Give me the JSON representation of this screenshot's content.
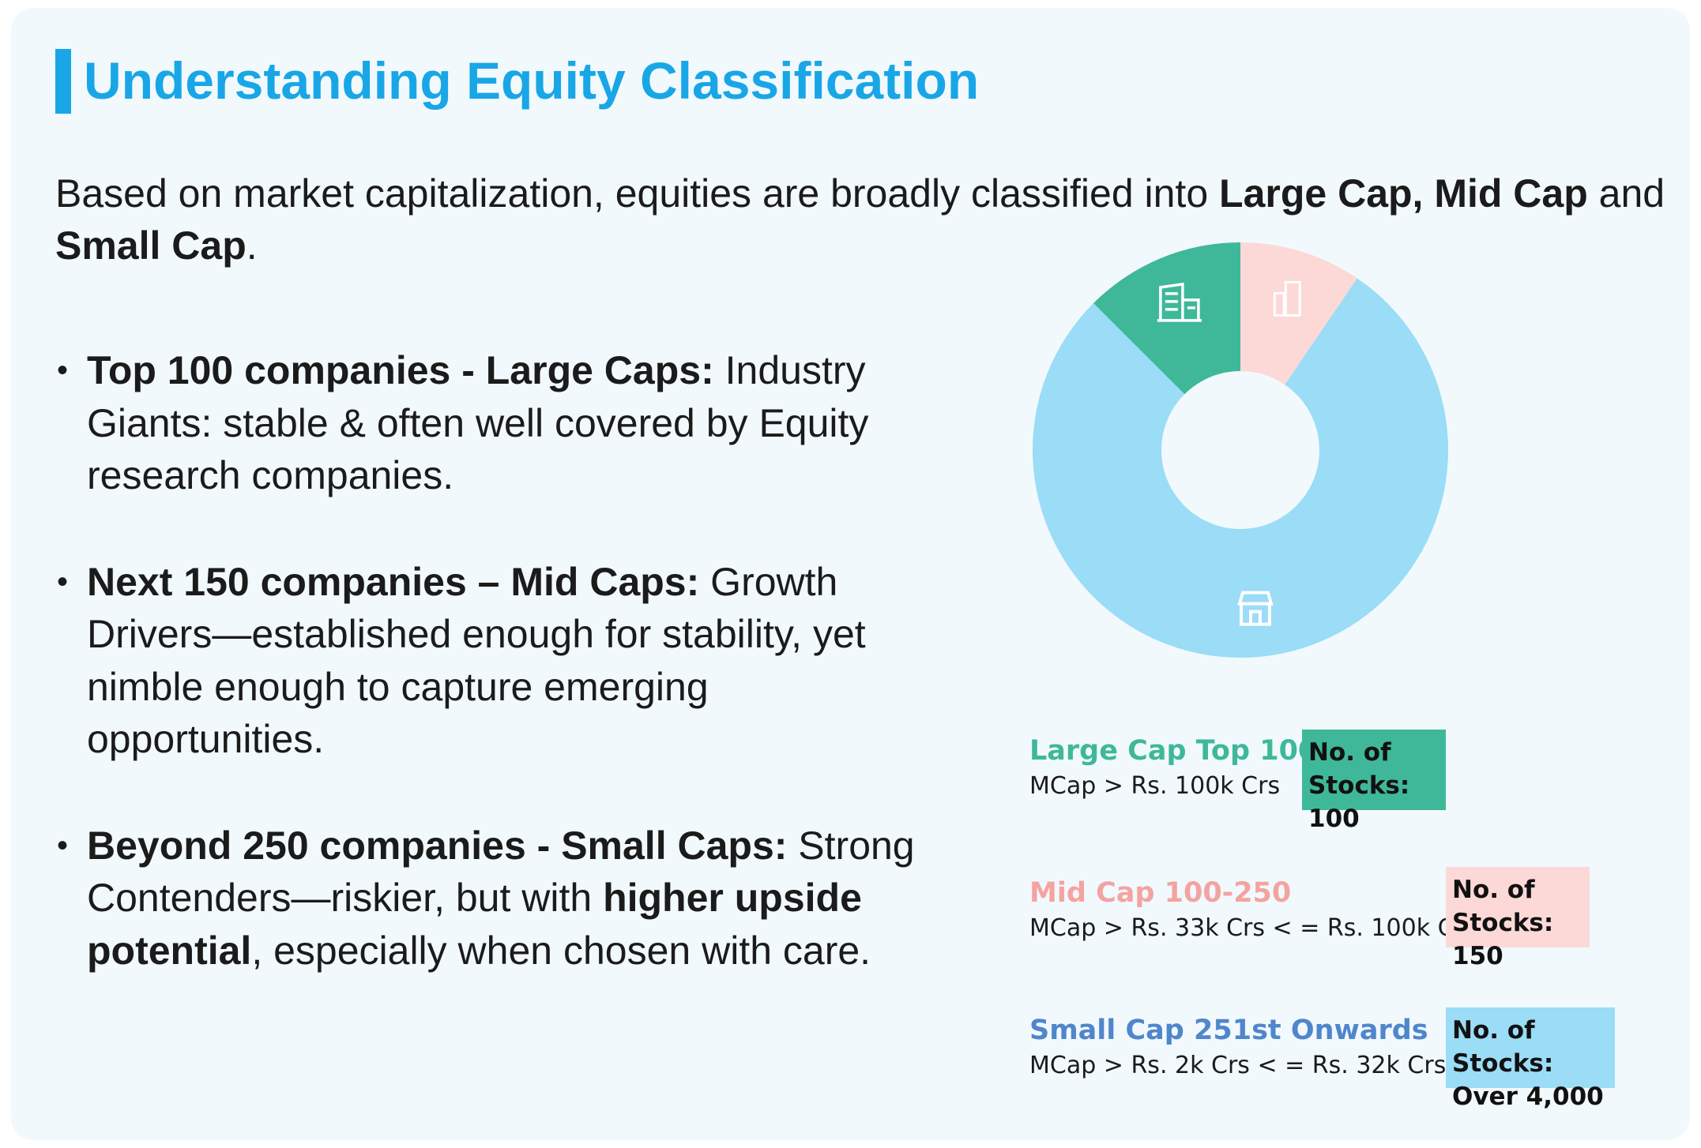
{
  "header": {
    "title": "Understanding Equity Classification"
  },
  "intro": {
    "part1": "Based on market capitalization, equities are broadly classified into ",
    "bold1": "Large Cap, Mid Cap",
    "part2": " and ",
    "bold2": "Small Cap",
    "part3": "."
  },
  "bullets": [
    {
      "bold": "Top 100 companies - Large Caps:",
      "text": " Industry Giants: stable & often well covered by Equity research companies."
    },
    {
      "bold": "Next 150 companies – Mid Caps:",
      "text": " Growth Drivers—established enough for stability, yet nimble enough to capture emerging opportunities."
    },
    {
      "bold": "Beyond 250 companies - Small Caps:",
      "text": " Strong Contenders—riskier, but with ",
      "bold2": "higher upside potential",
      "text2": ", especially when chosen with care."
    }
  ],
  "legend": [
    {
      "title": "Large Cap Top 100",
      "sub": "MCap > Rs. 100k Crs",
      "box_line1": "No. of",
      "box_line2": "Stocks: 100",
      "title_color": "#3fb89a",
      "box_color": "#3fb89a"
    },
    {
      "title": "Mid Cap 100-250",
      "sub": "MCap > Rs. 33k Crs < = Rs. 100k Crs",
      "box_line1": "No. of",
      "box_line2": "Stocks: 150",
      "title_color": "#f4a3a0",
      "box_color": "#fcd9d7"
    },
    {
      "title": "Small Cap 251st Onwards",
      "sub": "MCap > Rs. 2k Crs < = Rs. 32k Crs",
      "box_line1": "No. of Stocks:",
      "box_line2": "Over 4,000",
      "title_color": "#4f86cc",
      "box_color": "#9bdcf7"
    }
  ],
  "chart_data": {
    "type": "pie",
    "title": "",
    "categories": [
      "Mid Cap",
      "Small Cap",
      "Large Cap"
    ],
    "values": [
      9.5,
      78,
      12.5
    ],
    "colors": [
      "#fcd9d7",
      "#9bdcf7",
      "#3fb89a"
    ],
    "icons": [
      "buildings-icon",
      "storefront-icon",
      "office-building-icon"
    ],
    "legend": "none"
  }
}
